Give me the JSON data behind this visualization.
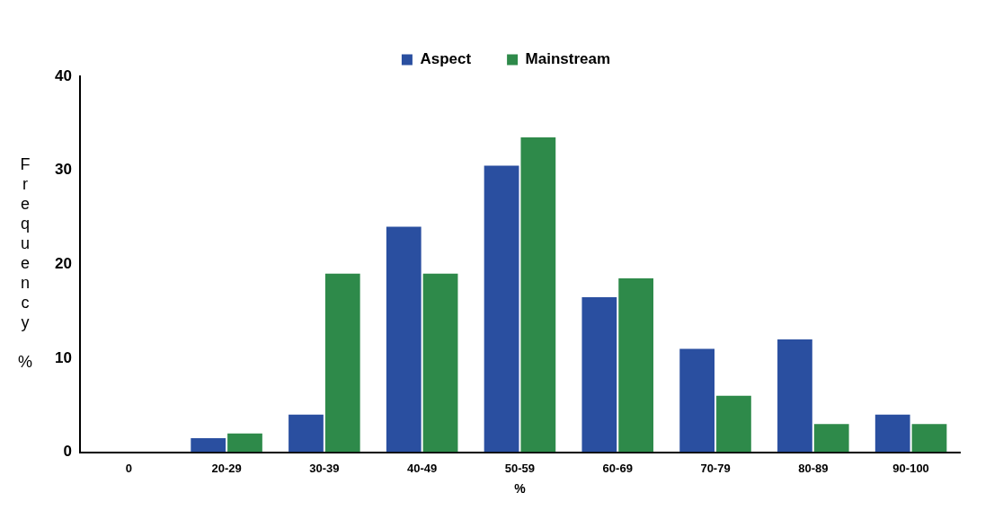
{
  "chart_data": {
    "type": "bar",
    "xlabel": "%",
    "ylabel": "Frequency %",
    "categories": [
      "0",
      "20-29",
      "30-39",
      "40-49",
      "50-59",
      "60-69",
      "70-79",
      "80-89",
      "90-100"
    ],
    "series": [
      {
        "name": "Aspect",
        "color": "#2a4fa0",
        "values": [
          0,
          1.5,
          4,
          24,
          30.5,
          16.5,
          11,
          12,
          4
        ]
      },
      {
        "name": "Mainstream",
        "color": "#2e8a4a",
        "values": [
          0,
          2,
          19,
          19,
          33.5,
          18.5,
          6,
          3,
          3
        ]
      }
    ],
    "ylim": [
      0,
      40
    ],
    "yticks": [
      0,
      10,
      20,
      30,
      40
    ],
    "grid": false,
    "legend": "top"
  }
}
